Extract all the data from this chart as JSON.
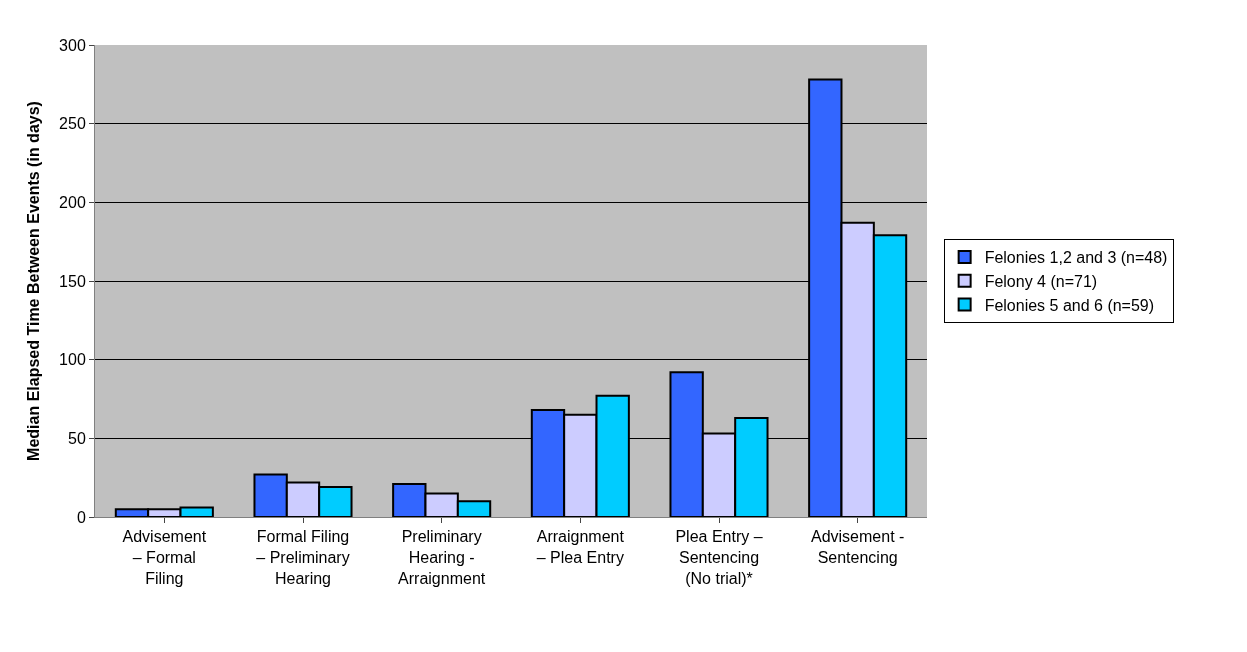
{
  "chart_data": {
    "type": "bar",
    "ylabel": "Median Elapsed Time Between Events (in days)",
    "categories": [
      "Advisement\n– Formal\nFiling",
      "Formal Filing\n– Preliminary\nHearing",
      "Preliminary\nHearing -\nArraignment",
      "Arraignment\n– Plea Entry",
      "Plea Entry –\nSentencing\n(No trial)*",
      "Advisement -\nSentencing"
    ],
    "series": [
      {
        "name": "Felonies 1,2 and 3 (n=48)",
        "color": "#3366ff",
        "values": [
          5,
          27,
          21,
          68,
          92,
          278
        ]
      },
      {
        "name": "Felony 4 (n=71)",
        "color": "#ccccff",
        "values": [
          5,
          22,
          15,
          65,
          53,
          187
        ]
      },
      {
        "name": "Felonies 5 and 6 (n=59)",
        "color": "#00ccff",
        "values": [
          6,
          19,
          10,
          77,
          63,
          179
        ]
      }
    ],
    "ylim": [
      0,
      300
    ],
    "yticks": [
      0,
      50,
      100,
      150,
      200,
      250,
      300
    ],
    "grid": "y",
    "legend": "right"
  }
}
